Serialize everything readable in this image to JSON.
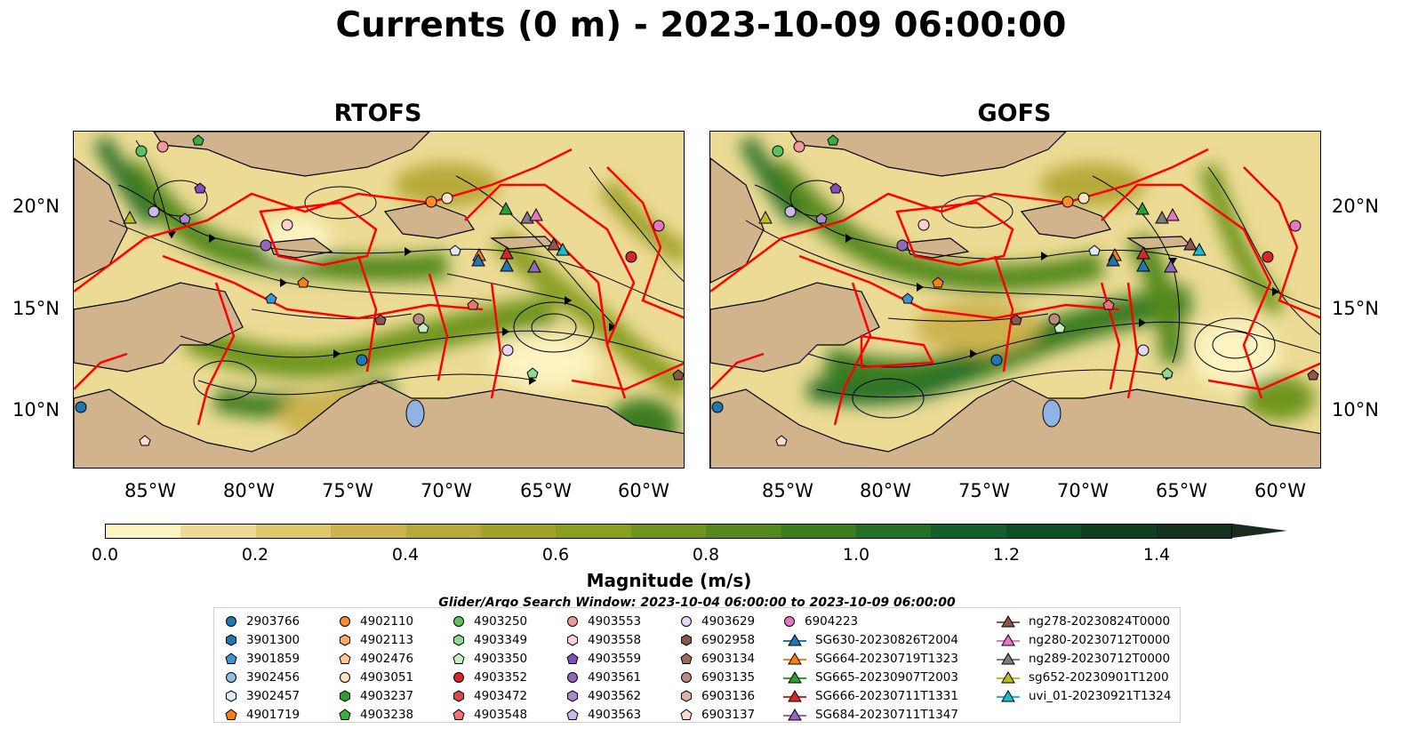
{
  "title": "Currents (0 m) - 2023-10-09 06:00:00",
  "panels": [
    {
      "title": "RTOFS"
    },
    {
      "title": "GOFS"
    }
  ],
  "lon_ticks": [
    "85°W",
    "80°W",
    "75°W",
    "70°W",
    "65°W",
    "60°W"
  ],
  "lat_ticks": [
    "20°N",
    "15°N",
    "10°N"
  ],
  "colorbar": {
    "label": "Magnitude (m/s)",
    "ticks": [
      "0.0",
      "0.2",
      "0.4",
      "0.6",
      "0.8",
      "1.0",
      "1.2",
      "1.4"
    ],
    "range": [
      0.0,
      1.5
    ],
    "extend": "max",
    "colors": [
      "#fbf3c0",
      "#ecdb95",
      "#dcc86e",
      "#cdb34f",
      "#b7aa3a",
      "#a1a12b",
      "#8a9e22",
      "#6f951e",
      "#54891e",
      "#3d7d22",
      "#256f27",
      "#145f29",
      "#0e4f25",
      "#0f3f21",
      "#13311e",
      "#1a2a1c"
    ]
  },
  "legend": {
    "title": "Glider/Argo Search Window: 2023-10-04 06:00:00 to 2023-10-09 06:00:00",
    "columns": [
      [
        {
          "label": "2903766",
          "marker": "circle",
          "color": "#1f77b4"
        },
        {
          "label": "3901300",
          "marker": "hexagon",
          "color": "#1f77b4"
        },
        {
          "label": "3901859",
          "marker": "pentagon",
          "color": "#3f94cf"
        },
        {
          "label": "3902456",
          "marker": "circle",
          "color": "#8cbfe6"
        },
        {
          "label": "3902457",
          "marker": "hexagon",
          "color": "#d9ecf7"
        },
        {
          "label": "4901719",
          "marker": "pentagon",
          "color": "#ff7f0e"
        }
      ],
      [
        {
          "label": "4902110",
          "marker": "circle",
          "color": "#ff8c2a"
        },
        {
          "label": "4902113",
          "marker": "hexagon",
          "color": "#ffa95e"
        },
        {
          "label": "4902476",
          "marker": "pentagon",
          "color": "#ffc895"
        },
        {
          "label": "4903051",
          "marker": "circle",
          "color": "#ffe3c4"
        },
        {
          "label": "4903237",
          "marker": "hexagon",
          "color": "#2ca02c"
        },
        {
          "label": "4903238",
          "marker": "pentagon",
          "color": "#3cae3c"
        }
      ],
      [
        {
          "label": "4903250",
          "marker": "circle",
          "color": "#5cc35c"
        },
        {
          "label": "4903349",
          "marker": "hexagon",
          "color": "#8fd98f"
        },
        {
          "label": "4903350",
          "marker": "pentagon",
          "color": "#c4efc4"
        },
        {
          "label": "4903352",
          "marker": "circle",
          "color": "#d62728"
        },
        {
          "label": "4903472",
          "marker": "hexagon",
          "color": "#e0474a"
        },
        {
          "label": "4903548",
          "marker": "pentagon",
          "color": "#ee7173"
        }
      ],
      [
        {
          "label": "4903553",
          "marker": "circle",
          "color": "#f29a9b"
        },
        {
          "label": "4903558",
          "marker": "hexagon",
          "color": "#fbd0d0"
        },
        {
          "label": "4903559",
          "marker": "pentagon",
          "color": "#7f4fbf"
        },
        {
          "label": "4903561",
          "marker": "circle",
          "color": "#9467bd"
        },
        {
          "label": "4903562",
          "marker": "hexagon",
          "color": "#a98ad0"
        },
        {
          "label": "4903563",
          "marker": "pentagon",
          "color": "#cdb8ea"
        }
      ],
      [
        {
          "label": "4903629",
          "marker": "circle",
          "color": "#e6d5f6"
        },
        {
          "label": "6902958",
          "marker": "hexagon",
          "color": "#8c564b"
        },
        {
          "label": "6903134",
          "marker": "pentagon",
          "color": "#a06a5e"
        },
        {
          "label": "6903135",
          "marker": "circle",
          "color": "#bb8a7e"
        },
        {
          "label": "6903136",
          "marker": "hexagon",
          "color": "#dcb3a6"
        },
        {
          "label": "6903137",
          "marker": "pentagon",
          "color": "#fbdcd0"
        }
      ],
      [
        {
          "label": "6904223",
          "marker": "circle",
          "color": "#e377c2"
        },
        {
          "label": "SG630-20230826T2004",
          "marker": "triangle-line",
          "color": "#1f77b4"
        },
        {
          "label": "SG664-20230719T1323",
          "marker": "triangle-line",
          "color": "#ff7f0e"
        },
        {
          "label": "SG665-20230907T2003",
          "marker": "triangle-line",
          "color": "#2ca02c"
        },
        {
          "label": "SG666-20230711T1331",
          "marker": "triangle-line",
          "color": "#d62728"
        },
        {
          "label": "SG684-20230711T1347",
          "marker": "triangle-line",
          "color": "#9467bd"
        }
      ],
      [
        {
          "label": "ng278-20230824T0000",
          "marker": "triangle-line",
          "color": "#8c564b"
        },
        {
          "label": "ng280-20230712T0000",
          "marker": "triangle-line",
          "color": "#e377c2"
        },
        {
          "label": "ng289-20230712T0000",
          "marker": "triangle-line",
          "color": "#7f7f7f"
        },
        {
          "label": "sg652-20230901T1200",
          "marker": "triangle-line",
          "color": "#bcbd22"
        },
        {
          "label": "uvi_01-20230921T1324",
          "marker": "triangle-line",
          "color": "#17becf"
        }
      ]
    ]
  },
  "colors": {
    "land": "#d2b48c",
    "lake": "#8fb4e3",
    "boundary": "#ff0000",
    "streamline": "#000000"
  }
}
